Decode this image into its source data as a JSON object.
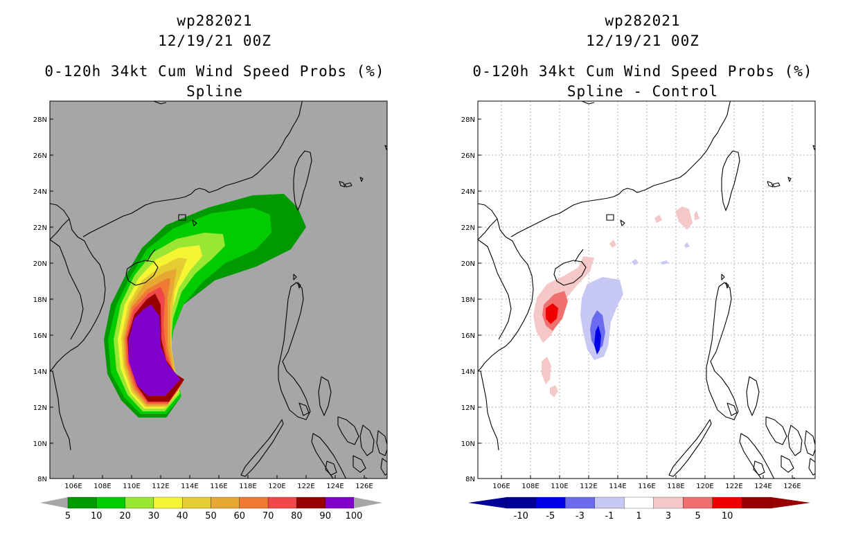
{
  "left": {
    "title_storm": "wp282021",
    "title_date": "12/19/21 00Z",
    "title_product": "0-120h 34kt Cum Wind Speed Probs (%)",
    "title_method": "Spline",
    "colorbar": {
      "labels": [
        "5",
        "10",
        "20",
        "30",
        "40",
        "50",
        "60",
        "70",
        "80",
        "90",
        "100"
      ],
      "colors": [
        "#009900",
        "#00cc00",
        "#99e633",
        "#f5f533",
        "#e6cc33",
        "#e6a833",
        "#ee7a33",
        "#f04848",
        "#990000",
        "#8000cc"
      ]
    }
  },
  "right": {
    "title_storm": "wp282021",
    "title_date": "12/19/21 00Z",
    "title_product": "0-120h 34kt Cum Wind Speed Probs (%)",
    "title_method": "Spline - Control",
    "colorbar": {
      "labels": [
        "-10",
        "-5",
        "-3",
        "-1",
        "1",
        "3",
        "5",
        "10"
      ],
      "colors": [
        "#000099",
        "#0000e6",
        "#6b6bf0",
        "#c8c8f5",
        "#ffffff",
        "#f5c8c8",
        "#f07070",
        "#f00000",
        "#990000"
      ]
    }
  },
  "axes": {
    "lat_labels": [
      "28N",
      "26N",
      "24N",
      "22N",
      "20N",
      "18N",
      "16N",
      "14N",
      "12N",
      "10N",
      "8N"
    ],
    "lon_labels": [
      "106E",
      "108E",
      "110E",
      "112E",
      "114E",
      "116E",
      "118E",
      "120E",
      "122E",
      "124E",
      "126E"
    ]
  }
}
